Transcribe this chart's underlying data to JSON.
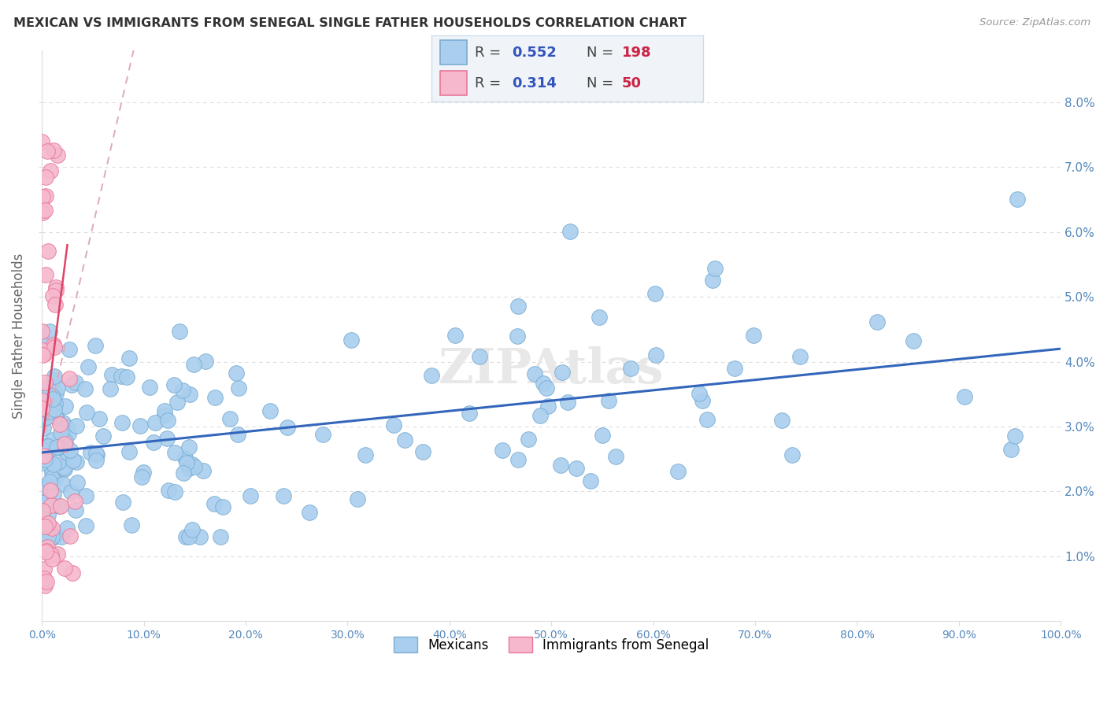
{
  "title": "MEXICAN VS IMMIGRANTS FROM SENEGAL SINGLE FATHER HOUSEHOLDS CORRELATION CHART",
  "source": "Source: ZipAtlas.com",
  "ylabel": "Single Father Households",
  "xlim": [
    0,
    1.0
  ],
  "ylim": [
    0,
    0.088
  ],
  "xtick_labels": [
    "0.0%",
    "10.0%",
    "20.0%",
    "30.0%",
    "40.0%",
    "50.0%",
    "60.0%",
    "70.0%",
    "80.0%",
    "90.0%",
    "100.0%"
  ],
  "ytick_right_labels": [
    "1.0%",
    "2.0%",
    "3.0%",
    "4.0%",
    "5.0%",
    "6.0%",
    "7.0%",
    "8.0%"
  ],
  "ytick_right_vals": [
    0.01,
    0.02,
    0.03,
    0.04,
    0.05,
    0.06,
    0.07,
    0.08
  ],
  "mexican_R": 0.552,
  "mexican_N": 198,
  "senegal_R": 0.314,
  "senegal_N": 50,
  "mexican_color": "#aacfee",
  "mexican_edge": "#7aadd4",
  "senegal_color": "#f5b8cc",
  "senegal_edge": "#e8789a",
  "trend_mexican_color": "#3366bb",
  "trend_senegal_color": "#dd4466",
  "trend_senegal_dash_color": "#ddaabb",
  "watermark_color": "#e8e8e8",
  "background_color": "#ffffff",
  "grid_color": "#dddddd",
  "title_color": "#333333",
  "axis_tick_color": "#5588bb",
  "ylabel_color": "#666666",
  "legend_box_color": "#f0f4f8",
  "legend_border_color": "#ccddee",
  "legend_R_color": "#3355bb",
  "legend_N_color": "#cc2244",
  "trend_mexican_x0": 0.0,
  "trend_mexican_y0": 0.026,
  "trend_mexican_x1": 1.0,
  "trend_mexican_y1": 0.042,
  "trend_senegal_x0": 0.0,
  "trend_senegal_y0": 0.027,
  "trend_senegal_x1": 0.025,
  "trend_senegal_y1": 0.058,
  "trend_senegal_dash_x0": 0.0,
  "trend_senegal_dash_y0": 0.027,
  "trend_senegal_dash_x1": 0.09,
  "trend_senegal_dash_y1": 0.088
}
